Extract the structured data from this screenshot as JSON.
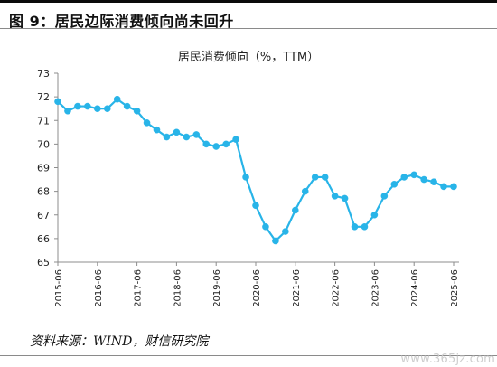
{
  "figure": {
    "title": "图 9：居民边际消费倾向尚未回升"
  },
  "chart_data": {
    "type": "line",
    "title": "居民消费倾向（%，TTM）",
    "xlabel": "",
    "ylabel": "",
    "ylim": [
      65,
      73
    ],
    "y_ticks": [
      65,
      66,
      67,
      68,
      69,
      70,
      71,
      72,
      73
    ],
    "x_ticks": [
      "2015-06",
      "2016-06",
      "2017-06",
      "2018-06",
      "2019-06",
      "2020-06",
      "2021-06",
      "2022-06",
      "2023-06",
      "2024-06",
      "2025-06"
    ],
    "grid": false,
    "series": [
      {
        "values": [
          71.8,
          71.4,
          71.6,
          71.6,
          71.5,
          71.5,
          71.9,
          71.6,
          71.4,
          70.9,
          70.6,
          70.3,
          70.5,
          70.3,
          70.4,
          70.0,
          69.9,
          70.0,
          70.2,
          68.6,
          67.4,
          66.5,
          65.9,
          66.3,
          67.2,
          68.0,
          68.6,
          68.6,
          67.8,
          67.7,
          66.5,
          66.5,
          67.0,
          67.8,
          68.3,
          68.6,
          68.7,
          68.5,
          68.4,
          68.2,
          68.2
        ],
        "x": [
          "2015-06",
          "2015-09",
          "2015-12",
          "2016-03",
          "2016-06",
          "2016-09",
          "2016-12",
          "2017-03",
          "2017-06",
          "2017-09",
          "2017-12",
          "2018-03",
          "2018-06",
          "2018-09",
          "2018-12",
          "2019-03",
          "2019-06",
          "2019-09",
          "2019-12",
          "2020-03",
          "2020-06",
          "2020-09",
          "2020-12",
          "2021-03",
          "2021-06",
          "2021-09",
          "2021-12",
          "2022-03",
          "2022-06",
          "2022-09",
          "2022-12",
          "2023-03",
          "2023-06",
          "2023-09",
          "2023-12",
          "2024-03",
          "2024-06",
          "2024-09",
          "2024-12",
          "2025-03",
          "2025-06"
        ],
        "color": "#28b4e8"
      }
    ]
  },
  "source": {
    "text": "资料来源：WIND，财信研究院"
  },
  "watermark": {
    "text": "www.365jz.com"
  }
}
